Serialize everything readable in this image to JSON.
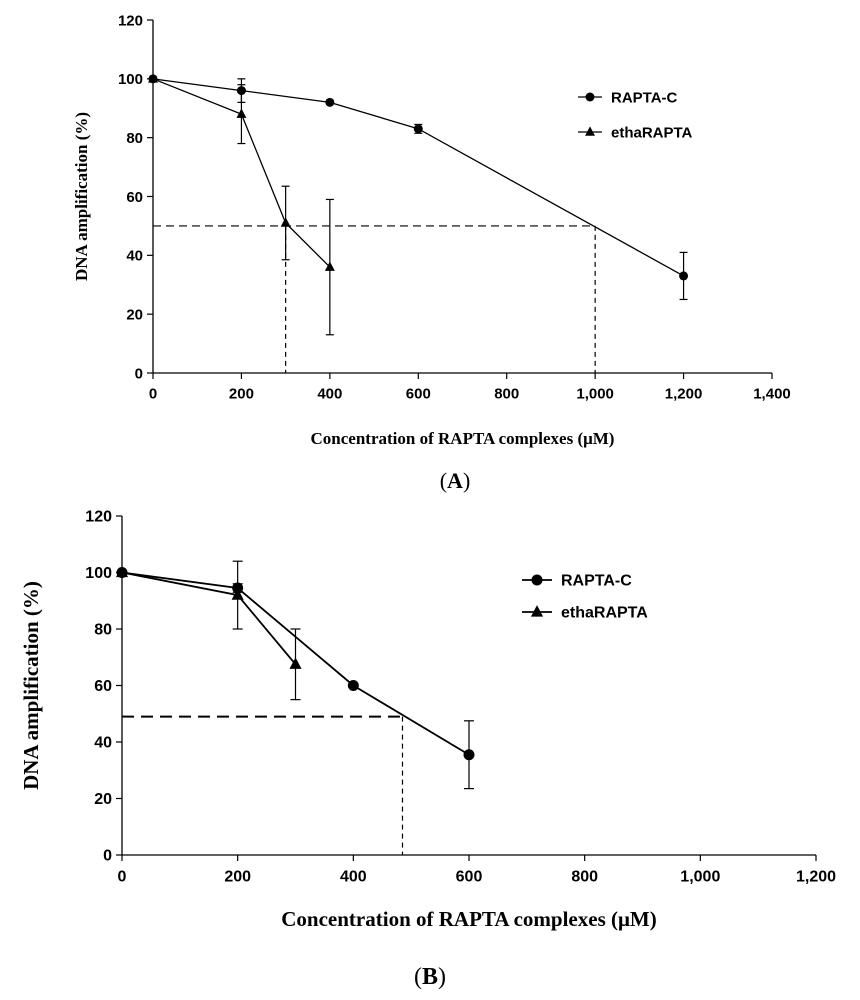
{
  "chart_data": [
    {
      "type": "line",
      "panel": {
        "open": "(",
        "letter": "A",
        "close": ")"
      },
      "xlabel": "Concentration of RAPTA complexes (μM)",
      "ylabel": "DNA amplification (%)",
      "xlim": [
        0,
        1400
      ],
      "ylim": [
        0,
        120
      ],
      "xticks": [
        0,
        200,
        400,
        600,
        800,
        1000,
        1200,
        1400
      ],
      "xtick_labels": [
        "0",
        "200",
        "400",
        "600",
        "800",
        "1,000",
        "1,200",
        "1,400"
      ],
      "yticks": [
        0,
        20,
        40,
        60,
        80,
        100,
        120
      ],
      "ytick_labels": [
        "0",
        "20",
        "40",
        "60",
        "80",
        "100",
        "120"
      ],
      "legend_position": "top-right",
      "series": [
        {
          "name": "RAPTA-C",
          "marker": "circle",
          "x": [
            0,
            200,
            400,
            600,
            1200
          ],
          "y": [
            100,
            96,
            92,
            83,
            33
          ],
          "err": [
            0,
            4,
            0,
            1.5,
            8
          ]
        },
        {
          "name": "ethaRAPTA",
          "marker": "triangle",
          "x": [
            0,
            200,
            300,
            400
          ],
          "y": [
            100,
            88,
            51,
            36
          ],
          "err": [
            0,
            10,
            12.5,
            23
          ]
        }
      ],
      "reference_lines": {
        "y": 50,
        "x": [
          300,
          1000
        ]
      }
    },
    {
      "type": "line",
      "panel": {
        "open": "(",
        "letter": "B",
        "close": ")"
      },
      "xlabel": "Concentration of RAPTA complexes (μM)",
      "ylabel": "DNA amplification (%)",
      "xlim": [
        0,
        1200
      ],
      "ylim": [
        0,
        120
      ],
      "xticks": [
        0,
        200,
        400,
        600,
        800,
        1000,
        1200
      ],
      "xtick_labels": [
        "0",
        "200",
        "400",
        "600",
        "800",
        "1,000",
        "1,200"
      ],
      "yticks": [
        0,
        20,
        40,
        60,
        80,
        100,
        120
      ],
      "ytick_labels": [
        "0",
        "20",
        "40",
        "60",
        "80",
        "100",
        "120"
      ],
      "legend_position": "top-right",
      "series": [
        {
          "name": "RAPTA-C",
          "marker": "circle",
          "x": [
            0,
            200,
            400,
            600
          ],
          "y": [
            100,
            94.5,
            60,
            35.5
          ],
          "err": [
            0,
            1.5,
            0,
            12
          ]
        },
        {
          "name": "ethaRAPTA",
          "marker": "triangle",
          "x": [
            0,
            200,
            300
          ],
          "y": [
            100,
            92,
            67.5
          ],
          "err": [
            0,
            12,
            12.5
          ]
        }
      ],
      "reference_lines": {
        "y": 49,
        "x": [
          485
        ]
      }
    }
  ]
}
